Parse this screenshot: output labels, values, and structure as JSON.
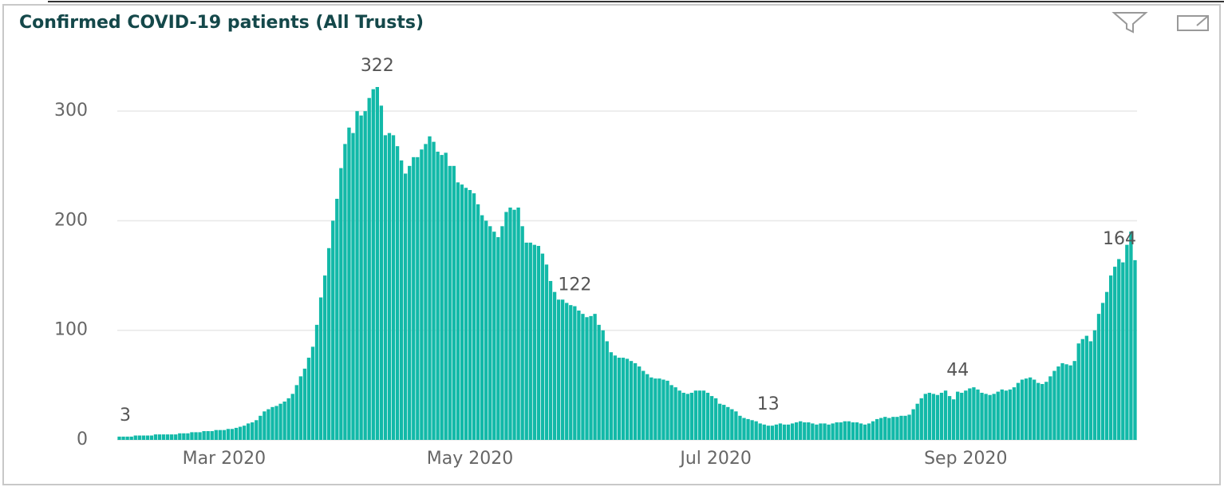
{
  "chart_data": {
    "type": "bar",
    "title": "Confirmed COVID-19 patients (All Trusts)",
    "color": "#12b9a8",
    "grid": true,
    "ylim": [
      0,
      330
    ],
    "yticks": [
      0,
      100,
      200,
      300
    ],
    "categories": [
      null,
      null,
      null,
      null,
      null,
      null,
      null,
      null,
      null,
      null,
      null,
      null,
      null,
      null,
      null,
      null,
      null,
      null,
      null,
      null,
      null,
      null,
      null,
      null,
      null,
      null,
      "Mar 2020",
      null,
      null,
      null,
      null,
      null,
      null,
      null,
      null,
      null,
      null,
      null,
      null,
      null,
      null,
      null,
      null,
      null,
      null,
      null,
      null,
      null,
      null,
      null,
      null,
      null,
      null,
      null,
      null,
      null,
      null,
      null,
      null,
      null,
      null,
      null,
      null,
      null,
      null,
      null,
      null,
      null,
      null,
      null,
      null,
      null,
      null,
      null,
      null,
      null,
      null,
      null,
      null,
      null,
      null,
      null,
      null,
      null,
      null,
      null,
      null,
      "May 2020",
      null,
      null,
      null,
      null,
      null,
      null,
      null,
      null,
      null,
      null,
      null,
      null,
      null,
      null,
      null,
      null,
      null,
      null,
      null,
      null,
      null,
      null,
      null,
      null,
      null,
      null,
      null,
      null,
      null,
      null,
      null,
      null,
      null,
      null,
      null,
      null,
      null,
      null,
      null,
      null,
      null,
      null,
      null,
      null,
      null,
      null,
      null,
      null,
      null,
      null,
      null,
      null,
      null,
      null,
      null,
      null,
      null,
      null,
      null,
      null,
      "Jul 2020",
      null,
      null,
      null,
      null,
      null,
      null,
      null,
      null,
      null,
      null,
      null,
      null,
      null,
      null,
      null,
      null,
      null,
      null,
      null,
      null,
      null,
      null,
      null,
      null,
      null,
      null,
      null,
      null,
      null,
      null,
      null,
      null,
      null,
      null,
      null,
      null,
      null,
      null,
      null,
      null,
      null,
      null,
      null,
      null,
      null,
      null,
      null,
      null,
      null,
      null,
      null,
      null,
      null,
      null,
      null,
      null,
      null,
      null,
      null,
      null,
      null,
      "Sep 2020",
      null,
      null,
      null,
      null,
      null,
      null,
      null,
      null,
      null,
      null,
      null,
      null,
      null,
      null,
      null,
      null,
      null,
      null,
      null,
      null,
      null,
      null,
      null,
      null,
      null,
      null,
      null,
      null,
      null,
      null,
      null,
      null,
      null,
      null,
      null,
      null,
      null,
      null,
      null,
      null,
      null,
      null
    ],
    "values": [
      3,
      3,
      3,
      3,
      4,
      4,
      4,
      4,
      4,
      5,
      5,
      5,
      5,
      5,
      5,
      6,
      6,
      6,
      7,
      7,
      7,
      8,
      8,
      8,
      9,
      9,
      9,
      10,
      10,
      11,
      12,
      13,
      15,
      16,
      18,
      22,
      26,
      28,
      30,
      31,
      33,
      35,
      38,
      42,
      50,
      58,
      65,
      75,
      85,
      105,
      130,
      150,
      175,
      200,
      220,
      248,
      270,
      285,
      280,
      300,
      296,
      300,
      312,
      320,
      322,
      305,
      278,
      280,
      278,
      268,
      255,
      243,
      250,
      258,
      258,
      265,
      270,
      277,
      272,
      263,
      260,
      262,
      250,
      250,
      235,
      233,
      230,
      228,
      225,
      215,
      205,
      200,
      195,
      190,
      185,
      195,
      208,
      212,
      210,
      212,
      195,
      180,
      180,
      178,
      177,
      170,
      160,
      145,
      135,
      128,
      128,
      125,
      123,
      122,
      118,
      115,
      112,
      113,
      115,
      105,
      100,
      90,
      80,
      77,
      75,
      75,
      74,
      72,
      70,
      67,
      63,
      60,
      57,
      56,
      56,
      55,
      54,
      50,
      48,
      45,
      43,
      42,
      43,
      45,
      45,
      45,
      43,
      40,
      38,
      33,
      32,
      30,
      28,
      26,
      22,
      20,
      19,
      18,
      17,
      15,
      14,
      13,
      13,
      14,
      15,
      14,
      14,
      15,
      16,
      17,
      16,
      16,
      15,
      14,
      15,
      15,
      14,
      15,
      16,
      16,
      17,
      17,
      16,
      16,
      15,
      14,
      15,
      17,
      19,
      20,
      21,
      20,
      21,
      21,
      22,
      22,
      23,
      28,
      33,
      38,
      42,
      43,
      42,
      41,
      43,
      45,
      40,
      37,
      44,
      43,
      45,
      47,
      48,
      46,
      43,
      42,
      41,
      42,
      44,
      46,
      45,
      46,
      48,
      52,
      55,
      56,
      57,
      55,
      52,
      51,
      53,
      58,
      63,
      67,
      70,
      69,
      68,
      72,
      88,
      92,
      95,
      90,
      100,
      115,
      125,
      135,
      150,
      158,
      165,
      162,
      178,
      190,
      164
    ],
    "value_labels": [
      "3",
      null,
      null,
      null,
      null,
      null,
      null,
      null,
      null,
      null,
      null,
      null,
      null,
      null,
      null,
      null,
      null,
      null,
      null,
      null,
      null,
      null,
      null,
      null,
      null,
      null,
      null,
      null,
      null,
      null,
      null,
      null,
      null,
      null,
      null,
      null,
      null,
      null,
      null,
      null,
      null,
      null,
      null,
      null,
      null,
      null,
      null,
      null,
      null,
      null,
      null,
      null,
      null,
      null,
      null,
      null,
      null,
      null,
      null,
      null,
      null,
      null,
      null,
      null,
      "322",
      null,
      null,
      null,
      null,
      null,
      null,
      null,
      null,
      null,
      null,
      null,
      null,
      null,
      null,
      null,
      null,
      null,
      null,
      null,
      null,
      null,
      null,
      null,
      null,
      null,
      null,
      null,
      null,
      null,
      null,
      null,
      null,
      null,
      null,
      null,
      null,
      null,
      null,
      null,
      null,
      null,
      null,
      null,
      null,
      null,
      null,
      null,
      null,
      "122",
      null,
      null,
      null,
      null,
      null,
      null,
      null,
      null,
      null,
      null,
      null,
      null,
      null,
      null,
      null,
      null,
      null,
      null,
      null,
      null,
      null,
      null,
      null,
      null,
      null,
      null,
      null,
      null,
      null,
      null,
      null,
      null,
      null,
      null,
      null,
      null,
      null,
      null,
      null,
      null,
      null,
      null,
      null,
      null,
      null,
      null,
      null,
      "13",
      null,
      null,
      null,
      null,
      null,
      null,
      null,
      null,
      null,
      null,
      null,
      null,
      null,
      null,
      null,
      null,
      null,
      null,
      null,
      null,
      null,
      null,
      null,
      null,
      null,
      null,
      null,
      null,
      null,
      null,
      null,
      null,
      null,
      null,
      null,
      null,
      null,
      null,
      null,
      null,
      null,
      null,
      null,
      null,
      null,
      null,
      "44",
      null,
      null,
      null,
      null,
      null,
      null,
      null,
      null,
      null,
      null,
      null,
      null,
      null,
      null,
      null,
      null,
      null,
      null,
      null,
      null,
      null,
      null,
      null,
      null,
      null,
      null,
      null,
      null,
      null,
      null,
      null,
      null,
      null,
      null,
      null,
      null,
      null,
      null,
      null,
      null,
      null,
      null,
      null,
      "164"
    ]
  }
}
